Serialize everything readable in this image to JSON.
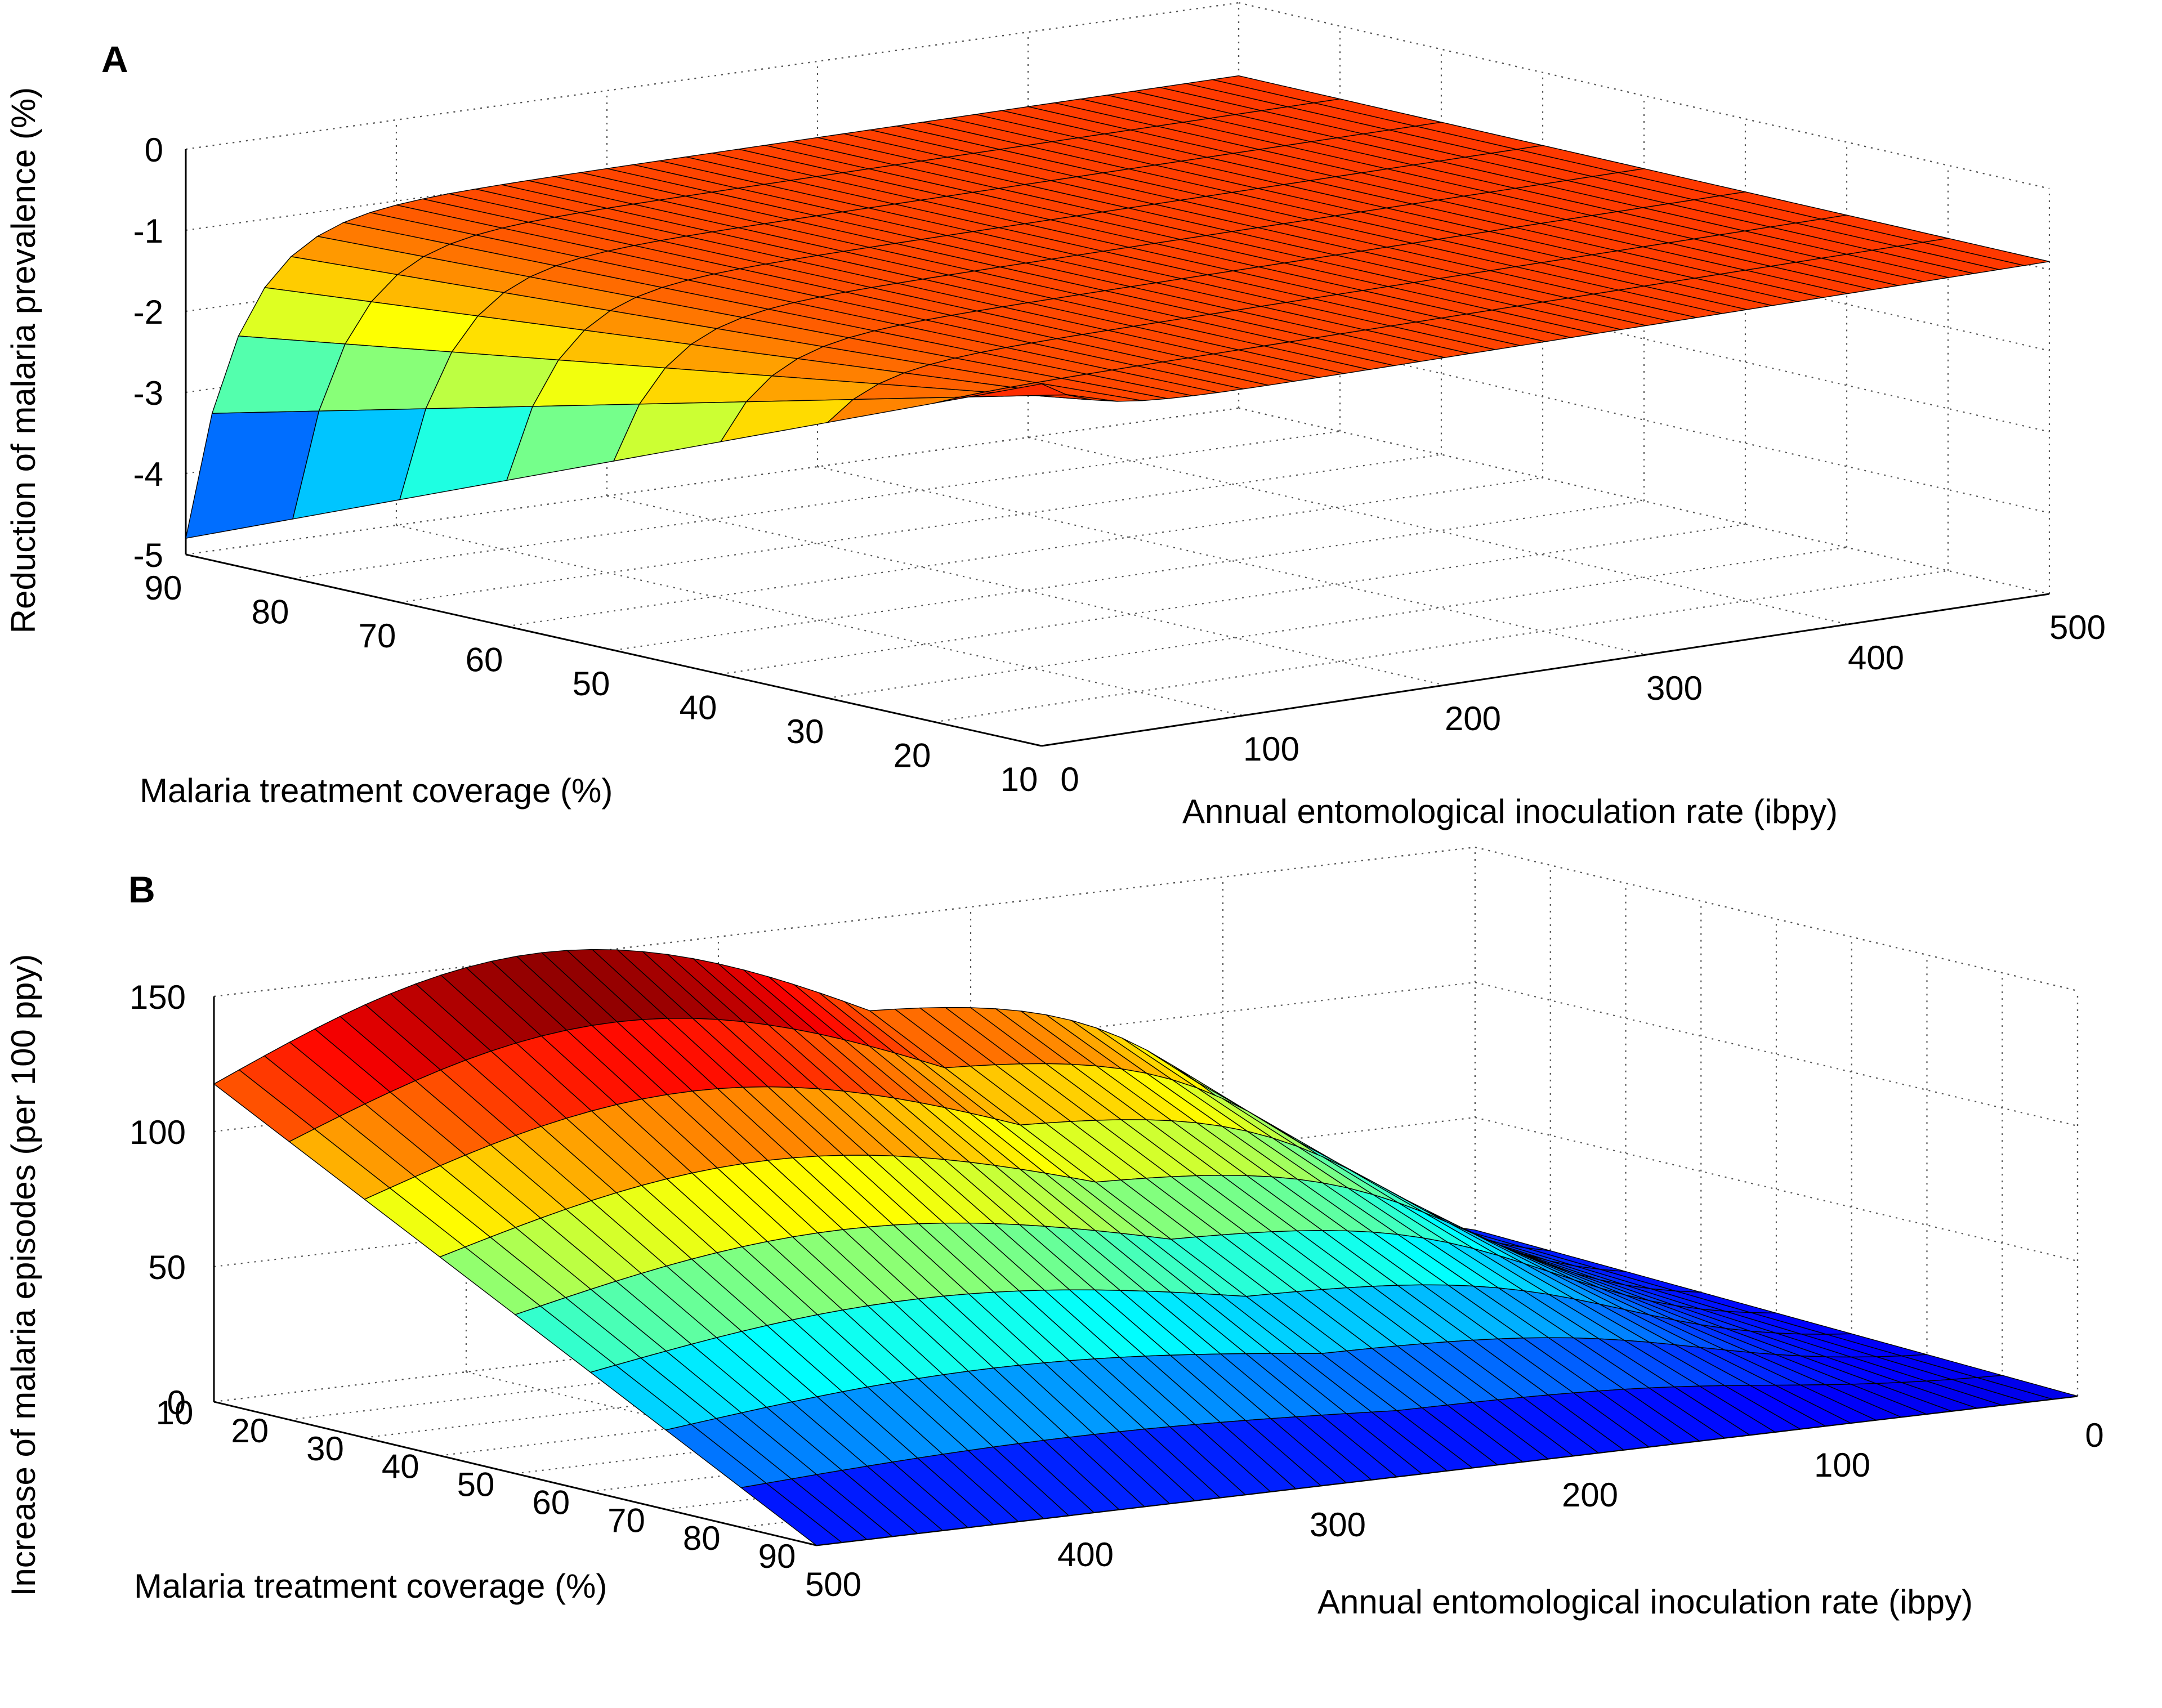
{
  "chart_data": [
    {
      "panel": "A",
      "type": "surface",
      "zlabel": "Reduction of malaria prevalence (%)",
      "xlabel": "Malaria treatment coverage (%)",
      "ylabel": "Annual entomological inoculation rate (ibpy)",
      "x_ticks": [
        90,
        80,
        70,
        60,
        50,
        40,
        30,
        20,
        10
      ],
      "y_ticks": [
        0,
        100,
        200,
        300,
        400,
        500
      ],
      "z_ticks": [
        0,
        -1,
        -2,
        -3,
        -4,
        -5
      ],
      "zlim": [
        -5,
        0
      ],
      "grid": true,
      "colormap": "jet",
      "description_values": {
        "coverage": [
          90,
          80,
          70,
          60,
          50,
          40,
          30,
          20,
          10
        ],
        "min_reduction_at_eir0_cov90": -4.8,
        "reduction_at_eir500": -0.9
      }
    },
    {
      "panel": "B",
      "type": "surface",
      "zlabel": "Increase of malaria episodes (per 100 ppy)",
      "xlabel": "Malaria treatment coverage (%)",
      "ylabel": "Annual entomological inoculation rate (ibpy)",
      "x_ticks": [
        10,
        20,
        30,
        40,
        50,
        60,
        70,
        80,
        90
      ],
      "y_ticks": [
        500,
        400,
        300,
        200,
        100,
        0
      ],
      "z_ticks": [
        0,
        50,
        100,
        150
      ],
      "zlim": [
        0,
        150
      ],
      "grid": true,
      "colormap": "jet",
      "description_values": {
        "coverage": [
          10,
          20,
          30,
          40,
          50,
          60,
          70,
          80,
          90
        ],
        "max_increase": 150,
        "increase_at_eir500_cov10": 120
      }
    }
  ],
  "colors": {
    "gridline": "#555555",
    "edge": "#000000",
    "jet": [
      "#00008f",
      "#0000ff",
      "#0080ff",
      "#00ffff",
      "#80ff80",
      "#ffff00",
      "#ff8000",
      "#ff0000",
      "#800000"
    ]
  }
}
